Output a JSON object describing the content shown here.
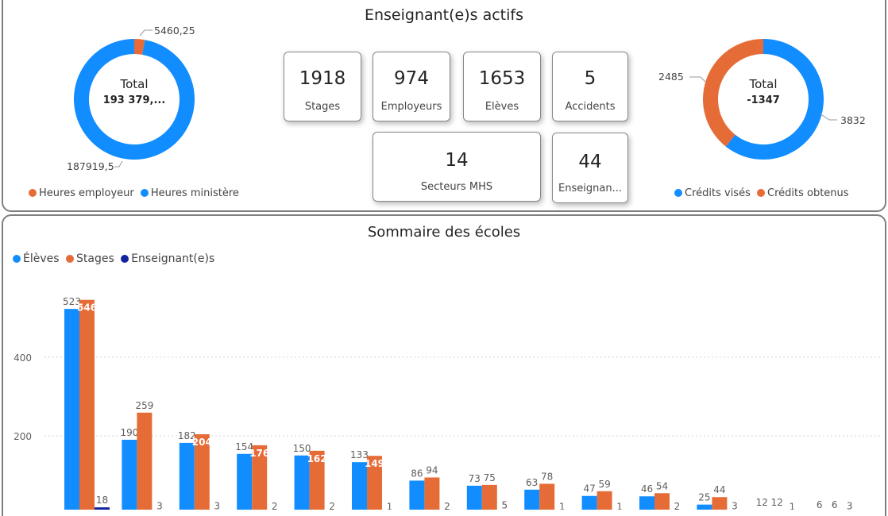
{
  "colors": {
    "blue": "#118dff",
    "orange": "#e66c37",
    "navy": "#12239e"
  },
  "top": {
    "title": "Enseignant(e)s actifs",
    "donut_hours": {
      "center_title": "Total",
      "center_value": "193 379,...",
      "label_small": "5460,25",
      "label_large": "187919,5",
      "slices": [
        {
          "name": "Heures employeur",
          "value": 5460.25,
          "color": "#e66c37"
        },
        {
          "name": "Heures ministère",
          "value": 187919.5,
          "color": "#118dff"
        }
      ],
      "legend": [
        {
          "label": "Heures employeur",
          "color": "#e66c37"
        },
        {
          "label": "Heures ministère",
          "color": "#118dff"
        }
      ]
    },
    "cards": [
      {
        "value": "1918",
        "label": "Stages"
      },
      {
        "value": "974",
        "label": "Employeurs"
      },
      {
        "value": "1653",
        "label": "Élèves"
      },
      {
        "value": "5",
        "label": "Accidents"
      },
      {
        "value": "14",
        "label": "Secteurs MHS"
      },
      {
        "value": "44",
        "label": "Enseignan..."
      }
    ],
    "donut_credits": {
      "center_title": "Total",
      "center_value": "-1347",
      "label_left": "2485",
      "label_right": "3832",
      "slices": [
        {
          "name": "Crédits visés",
          "value": 3832,
          "color": "#118dff"
        },
        {
          "name": "Crédits obtenus",
          "value": 2485,
          "color": "#e66c37"
        }
      ],
      "legend": [
        {
          "label": "Crédits visés",
          "color": "#118dff"
        },
        {
          "label": "Crédits obtenus",
          "color": "#e66c37"
        }
      ]
    }
  },
  "bottom": {
    "title": "Sommaire des écoles",
    "legend": [
      {
        "label": "Élèves",
        "color": "#118dff"
      },
      {
        "label": "Stages",
        "color": "#e66c37"
      },
      {
        "label": "Enseignant(e)s",
        "color": "#12239e"
      }
    ]
  },
  "chart_data": {
    "type": "bar",
    "title": "Sommaire des écoles",
    "xlabel": "",
    "ylabel": "",
    "y_ticks": [
      200,
      400
    ],
    "grid": true,
    "legend_position": "top-left",
    "series": [
      {
        "name": "Élèves",
        "color": "#118dff",
        "values": [
          523,
          190,
          182,
          154,
          150,
          133,
          86,
          73,
          63,
          47,
          46,
          25,
          12,
          6
        ]
      },
      {
        "name": "Stages",
        "color": "#e66c37",
        "values": [
          546,
          259,
          204,
          176,
          162,
          149,
          94,
          75,
          78,
          59,
          54,
          44,
          12,
          6
        ]
      },
      {
        "name": "Enseignant(e)s",
        "color": "#12239e",
        "values": [
          18,
          3,
          3,
          2,
          2,
          1,
          2,
          5,
          1,
          1,
          2,
          3,
          1,
          3
        ]
      }
    ]
  }
}
